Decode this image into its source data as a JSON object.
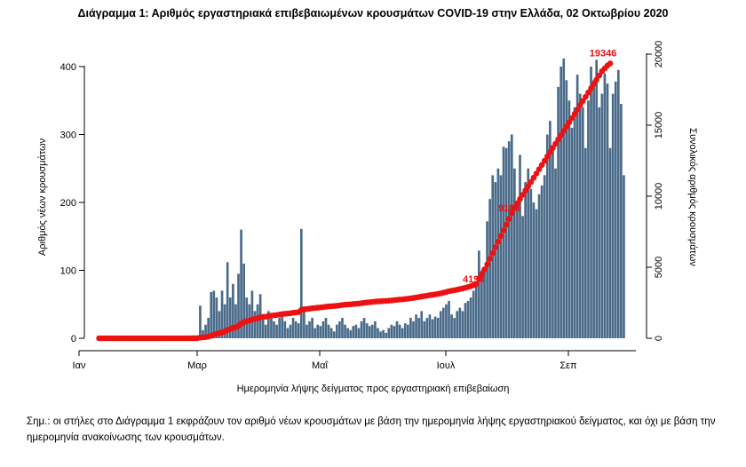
{
  "title": "Διάγραμμα 1: Αριθμός εργαστηριακά επιβεβαιωμένων κρουσμάτων COVID-19 στην Ελλάδα, 02 Οκτωβρίου 2020",
  "note": "Σημ.: οι στήλες στο Διάγραμμα 1 εκφράζουν τον αριθμό νέων κρουσμάτων με βάση την ημερομηνία λήψης εργαστηριακού δείγματος, και όχι με βάση την ημερομηνία ανακοίνωσης των κρουσμάτων.",
  "chart_data": {
    "type": "bar",
    "xlabel": "Ημερομηνία λήψης δείγματος προς εργαστηριακή επιβεβαίωση",
    "ylabel": "Αριθμός νέων κρουσμάτων",
    "y2label": "Συνολικός αριθμός κρουσμάτων",
    "xticks": [
      "Ιαν",
      "Μαρ",
      "Μαΐ",
      "Ιουλ",
      "Σεπ"
    ],
    "yticks": [
      0,
      100,
      200,
      300,
      400
    ],
    "y2ticks": [
      0,
      5000,
      10000,
      15000,
      20000
    ],
    "ylim": [
      0,
      470
    ],
    "y2lim": [
      0,
      20000
    ],
    "grid": false,
    "colors": {
      "bars": "#4a6b8a",
      "cumulative": "#ee1111"
    },
    "bars_series": {
      "name": "",
      "note": "daily new cases, one bar per day, start date aligned to late January",
      "values": [
        0,
        0,
        0,
        0,
        0,
        0,
        0,
        0,
        0,
        0,
        0,
        0,
        0,
        0,
        0,
        0,
        0,
        0,
        0,
        0,
        0,
        0,
        0,
        0,
        0,
        0,
        0,
        0,
        0,
        0,
        0,
        0,
        0,
        0,
        1,
        0,
        1,
        48,
        12,
        20,
        30,
        68,
        70,
        60,
        40,
        70,
        50,
        112,
        60,
        80,
        50,
        95,
        160,
        110,
        60,
        50,
        70,
        40,
        50,
        65,
        30,
        20,
        40,
        30,
        25,
        20,
        30,
        35,
        25,
        15,
        20,
        30,
        25,
        22,
        161,
        40,
        20,
        25,
        30,
        15,
        20,
        18,
        25,
        30,
        20,
        15,
        10,
        20,
        25,
        30,
        20,
        15,
        12,
        18,
        20,
        15,
        25,
        30,
        22,
        18,
        20,
        25,
        15,
        10,
        12,
        8,
        15,
        20,
        18,
        25,
        20,
        15,
        22,
        20,
        30,
        25,
        35,
        30,
        40,
        25,
        30,
        35,
        28,
        32,
        30,
        40,
        45,
        50,
        55,
        35,
        30,
        40,
        45,
        40,
        52,
        55,
        60,
        70,
        80,
        129,
        100,
        105,
        172,
        205,
        240,
        230,
        250,
        240,
        282,
        280,
        290,
        300,
        250,
        200,
        270,
        180,
        230,
        250,
        220,
        200,
        190,
        212,
        225,
        240,
        300,
        320,
        280,
        250,
        370,
        400,
        412,
        380,
        350,
        310,
        340,
        388,
        360,
        340,
        280,
        350,
        400,
        380,
        410,
        340,
        360,
        390,
        375,
        280,
        360,
        378,
        395,
        345,
        240
      ]
    },
    "cumulative_series": {
      "name": "",
      "values": [
        0,
        0,
        0,
        0,
        0,
        0,
        0,
        0,
        0,
        0,
        0,
        0,
        0,
        0,
        0,
        0,
        0,
        0,
        0,
        0,
        0,
        0,
        0,
        0,
        0,
        0,
        0,
        0,
        0,
        0,
        0,
        0,
        0,
        0,
        1,
        1,
        2,
        50,
        62,
        82,
        112,
        180,
        250,
        310,
        350,
        420,
        470,
        582,
        642,
        722,
        772,
        867,
        1027,
        1137,
        1197,
        1247,
        1317,
        1357,
        1407,
        1472,
        1502,
        1522,
        1562,
        1592,
        1617,
        1637,
        1667,
        1702,
        1727,
        1742,
        1762,
        1792,
        1817,
        1839,
        2000,
        2040,
        2060,
        2085,
        2115,
        2130,
        2150,
        2168,
        2193,
        2223,
        2243,
        2258,
        2268,
        2288,
        2313,
        2343,
        2363,
        2378,
        2390,
        2408,
        2428,
        2443,
        2468,
        2498,
        2520,
        2538,
        2558,
        2583,
        2598,
        2608,
        2620,
        2628,
        2643,
        2663,
        2681,
        2706,
        2726,
        2741,
        2763,
        2783,
        2813,
        2838,
        2873,
        2903,
        2943,
        2968,
        2998,
        3033,
        3061,
        3093,
        3123,
        3163,
        3208,
        3258,
        3313,
        3348,
        3378,
        3418,
        3463,
        3503,
        3555,
        3610,
        3670,
        3740,
        3820,
        4193,
        4500,
        4850,
        5200,
        5600,
        6000,
        6400,
        6800,
        7200,
        7600,
        8000,
        8400,
        8800,
        9188,
        9500,
        9800,
        10100,
        10400,
        10700,
        11000,
        11300,
        11600,
        11900,
        12200,
        12500,
        12800,
        13100,
        13400,
        13700,
        14000,
        14300,
        14600,
        14900,
        15200,
        15500,
        15800,
        16100,
        16400,
        16700,
        17000,
        17300,
        17600,
        17900,
        18200,
        18500,
        18800,
        19000,
        19200,
        19346
      ]
    },
    "annotations": [
      "19346",
      "4193",
      "9188"
    ]
  }
}
